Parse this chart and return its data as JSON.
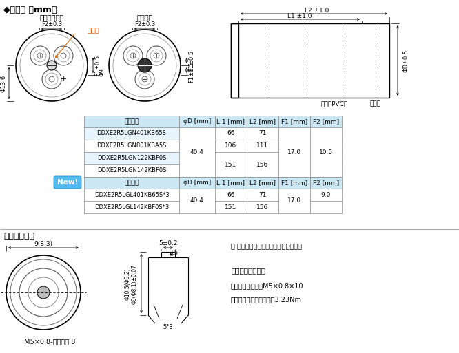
{
  "title": "◆尺寸图 ［mm］",
  "bg_color": "#ffffff",
  "table1_header": [
    "产品型号",
    "φD [mm]",
    "L 1 [mm]",
    "L2 [mm]",
    "F1 [mm]",
    "F2 [mm]"
  ],
  "table1_model_rows": [
    "DDXE2R5LGN401KB65S",
    "DDXE2R5LGN801KBA5S",
    "DDXE2R5LGN122KBF0S",
    "DDXE2R5LGN142KBF0S"
  ],
  "table1_D": "40.4",
  "table1_L1L2": [
    [
      "66",
      "71"
    ],
    [
      "106",
      "111"
    ],
    [
      "151",
      "156"
    ],
    [
      "",
      ""
    ]
  ],
  "table1_F1": "17.0",
  "table1_F2": "10.5",
  "table2_header": [
    "产品型号",
    "φD [mm]",
    "L 1 [mm]",
    "L2 [mm]",
    "F1 [mm]",
    "F2 [mm]"
  ],
  "table2_model_rows": [
    "DDXE2R5LGL401KB65S*3",
    "DDXE2R5LGL142KBF0S*3"
  ],
  "table2_D": "40.4",
  "table2_L1L2": [
    [
      "66",
      "71"
    ],
    [
      "151",
      "156"
    ]
  ],
  "table2_F1": "17.0",
  "table2_F2": "9.0",
  "header_bg": "#cce8f4",
  "row_bg_alt": "#e8f4fb",
  "row_bg": "#ffffff",
  "terminal_title": "端子详细尺寸",
  "note_text": "（ ）为垂直、水平安装均可产品的尺寸",
  "screw_title": "＜端子螺丝规格＞",
  "screw_line1": "十字六角长螺丝：M5×0.8×10",
  "screw_line2": "螺丝紧固最大容许扆矩：3.23Nm",
  "label_horizontal": "水平安装产品",
  "label_previous": "以往产品",
  "label_pressure": "压力阀",
  "label_sleeve": "套管（PVC）",
  "label_plastic": "塑料板",
  "dim_F2_03_left": "F2±0.3",
  "dim_F2_03_right": "F2±0.3",
  "dim_F1_05": "F1±0.5",
  "dim_13_6": "Φ13.6",
  "dim_9": "Φ9",
  "dim_D_05": "ΦD±0.5",
  "dim_L1": "L1 ±1.0",
  "dim_L2": "L2 ±1.0",
  "term_9_83": "9(8.3)",
  "term_5_02": "5±0.2",
  "term_2_5": "2.5",
  "term_phi1": "Φ10.5(Φ9.2)",
  "term_phi2": "Φ9(Φ8.1)±0.07",
  "term_depth": "M5×0.8-有效深度 8",
  "term_angle": "5°3",
  "new_label": "New!"
}
